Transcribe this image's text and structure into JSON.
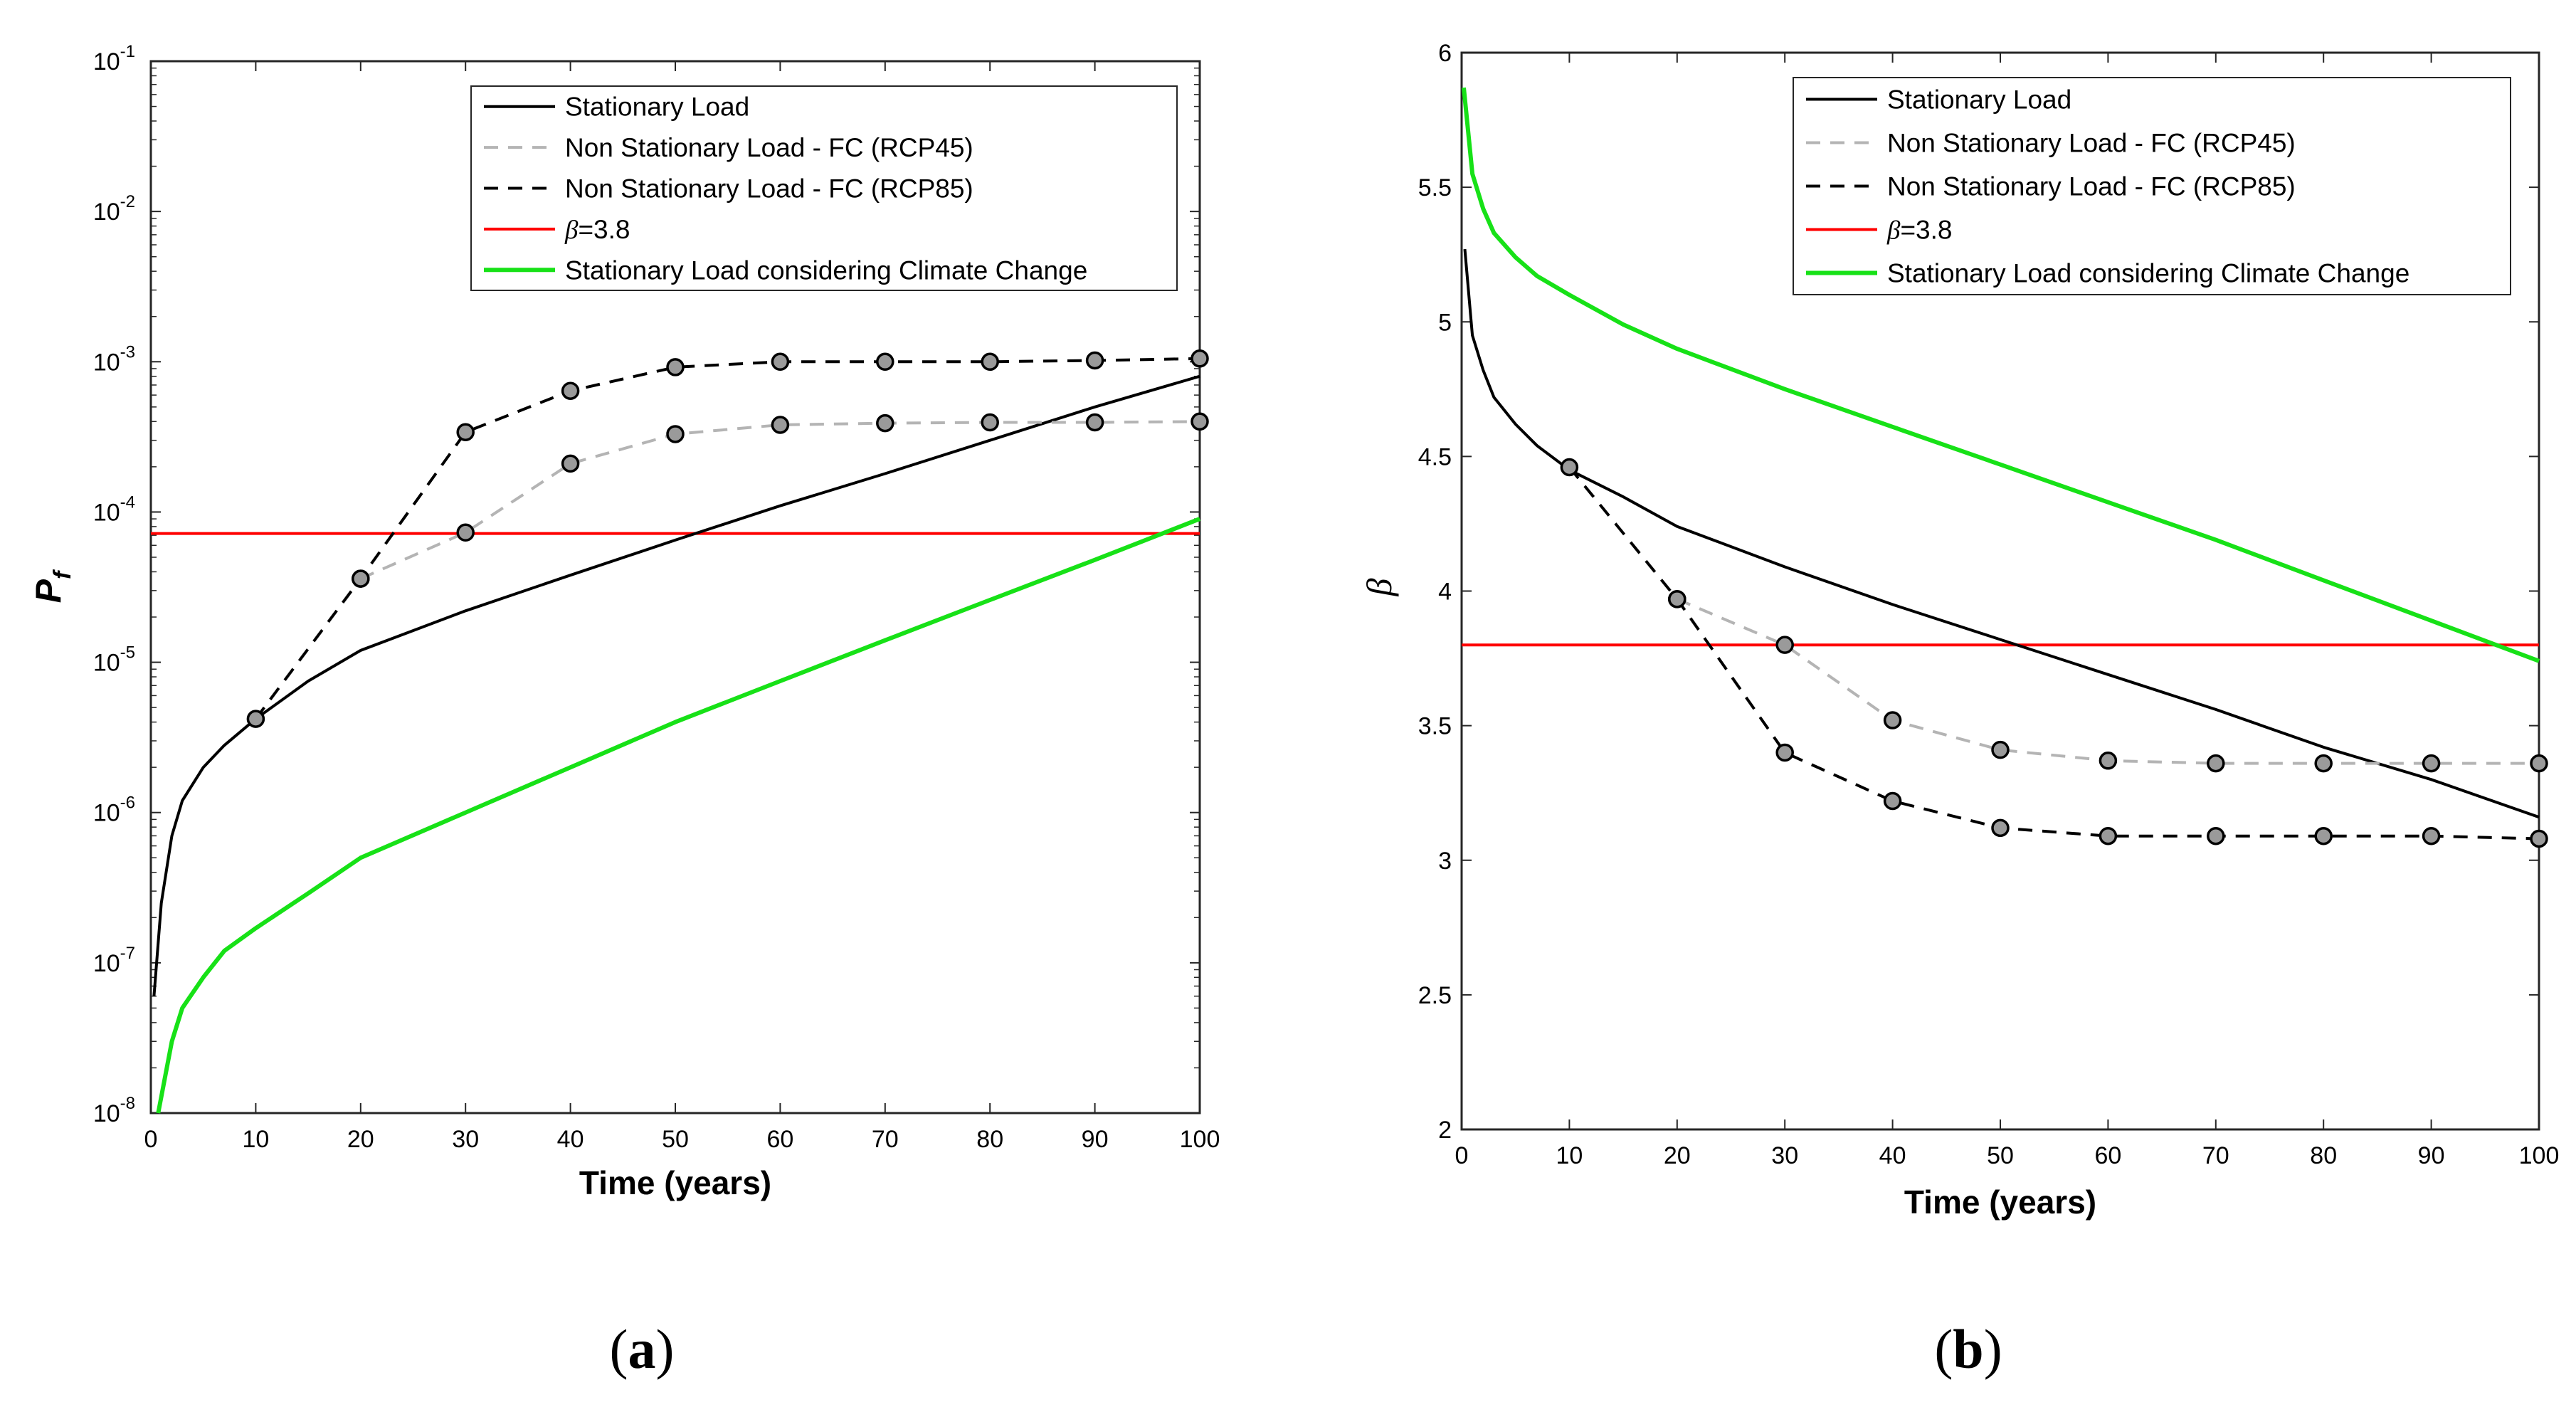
{
  "chart_data": [
    {
      "type": "line",
      "panel_label": "(a)",
      "panel_label_letter": "a",
      "xlabel": "Time (years)",
      "ylabel": "Pf",
      "ylabel_main": "P",
      "ylabel_sub": "f",
      "yscale": "log",
      "xlim": [
        0,
        100
      ],
      "ylim": [
        1e-08,
        0.1
      ],
      "xticks": [
        0,
        10,
        20,
        30,
        40,
        50,
        60,
        70,
        80,
        90,
        100
      ],
      "yticks": [
        {
          "value": 1e-08,
          "exp": "-8"
        },
        {
          "value": 1e-07,
          "exp": "-7"
        },
        {
          "value": 1e-06,
          "exp": "-6"
        },
        {
          "value": 1e-05,
          "exp": "-5"
        },
        {
          "value": 0.0001,
          "exp": "-4"
        },
        {
          "value": 0.001,
          "exp": "-3"
        },
        {
          "value": 0.01,
          "exp": "-2"
        },
        {
          "value": 0.1,
          "exp": "-1"
        }
      ],
      "tick_base": "10",
      "legend_position": "top-right",
      "series": [
        {
          "name": "Stationary Load",
          "color": "#000000",
          "dash": "solid",
          "markers": false,
          "x": [
            0.3,
            1,
            2,
            3,
            5,
            7,
            10,
            15,
            20,
            30,
            40,
            50,
            60,
            70,
            80,
            90,
            100
          ],
          "y": [
            6e-08,
            2.5e-07,
            7e-07,
            1.2e-06,
            2e-06,
            2.8e-06,
            4.2e-06,
            7.5e-06,
            1.2e-05,
            2.2e-05,
            3.8e-05,
            6.5e-05,
            0.00011,
            0.00018,
            0.0003,
            0.0005,
            0.0008
          ]
        },
        {
          "name": "Non Stationary Load - FC (RCP45)",
          "color": "#b4b4b4",
          "dash": "dashed",
          "markers": true,
          "x": [
            20,
            30,
            40,
            50,
            60,
            70,
            80,
            90,
            100
          ],
          "y": [
            3.6e-05,
            7.3e-05,
            0.00021,
            0.00033,
            0.00038,
            0.00039,
            0.000395,
            0.000395,
            0.0004
          ]
        },
        {
          "name": "Non Stationary Load - FC (RCP85)",
          "color": "#000000",
          "dash": "dashed",
          "markers": true,
          "x": [
            10,
            20,
            30,
            40,
            50,
            60,
            70,
            80,
            90,
            100
          ],
          "y": [
            4.2e-06,
            3.6e-05,
            0.00034,
            0.00064,
            0.00092,
            0.001,
            0.001,
            0.001,
            0.00102,
            0.00105
          ]
        },
        {
          "name": "β=3.8",
          "name_prefix": "β",
          "name_suffix": "=3.8",
          "color": "#ff0000",
          "dash": "solid",
          "markers": false,
          "x": [
            0,
            100
          ],
          "y": [
            7.2e-05,
            7.2e-05
          ]
        },
        {
          "name": "Stationary Load considering Climate Change",
          "color": "#17e117",
          "dash": "solid",
          "markers": false,
          "x": [
            0.7,
            2,
            3,
            5,
            7,
            10,
            15,
            20,
            30,
            40,
            50,
            60,
            70,
            80,
            90,
            100
          ],
          "y": [
            1e-08,
            3e-08,
            5e-08,
            8e-08,
            1.2e-07,
            1.7e-07,
            2.9e-07,
            5e-07,
            1e-06,
            2e-06,
            4e-06,
            7.5e-06,
            1.4e-05,
            2.6e-05,
            4.8e-05,
            9e-05
          ]
        }
      ]
    },
    {
      "type": "line",
      "panel_label": "(b)",
      "panel_label_letter": "b",
      "xlabel": "Time (years)",
      "ylabel": "β",
      "yscale": "linear",
      "xlim": [
        0,
        100
      ],
      "ylim": [
        2,
        6
      ],
      "xticks": [
        0,
        10,
        20,
        30,
        40,
        50,
        60,
        70,
        80,
        90,
        100
      ],
      "yticks": [
        2,
        2.5,
        3,
        3.5,
        4,
        4.5,
        5,
        5.5,
        6
      ],
      "legend_position": "top-right",
      "series": [
        {
          "name": "Stationary Load",
          "color": "#000000",
          "dash": "solid",
          "markers": false,
          "x": [
            0.3,
            1,
            2,
            3,
            5,
            7,
            10,
            15,
            20,
            30,
            40,
            50,
            60,
            70,
            80,
            90,
            100
          ],
          "y": [
            5.27,
            4.95,
            4.82,
            4.72,
            4.62,
            4.54,
            4.45,
            4.35,
            4.24,
            4.09,
            3.95,
            3.82,
            3.69,
            3.56,
            3.42,
            3.3,
            3.16
          ]
        },
        {
          "name": "Non Stationary Load - FC (RCP45)",
          "color": "#b4b4b4",
          "dash": "dashed",
          "markers": true,
          "x": [
            20,
            30,
            40,
            50,
            60,
            70,
            80,
            90,
            100
          ],
          "y": [
            3.97,
            3.8,
            3.52,
            3.41,
            3.37,
            3.36,
            3.36,
            3.36,
            3.36
          ]
        },
        {
          "name": "Non Stationary Load - FC (RCP85)",
          "color": "#000000",
          "dash": "dashed",
          "markers": true,
          "x": [
            10,
            20,
            30,
            40,
            50,
            60,
            70,
            80,
            90,
            100
          ],
          "y": [
            4.46,
            3.97,
            3.4,
            3.22,
            3.12,
            3.09,
            3.09,
            3.09,
            3.09,
            3.08
          ]
        },
        {
          "name": "β=3.8",
          "name_prefix": "β",
          "name_suffix": "=3.8",
          "color": "#ff0000",
          "dash": "solid",
          "markers": false,
          "x": [
            0,
            100
          ],
          "y": [
            3.8,
            3.8
          ]
        },
        {
          "name": "Stationary Load considering Climate Change",
          "color": "#17e117",
          "dash": "solid",
          "markers": false,
          "x": [
            0.2,
            1,
            2,
            3,
            5,
            7,
            10,
            15,
            20,
            30,
            40,
            50,
            60,
            70,
            80,
            90,
            100
          ],
          "y": [
            5.87,
            5.55,
            5.42,
            5.33,
            5.24,
            5.17,
            5.1,
            4.99,
            4.9,
            4.75,
            4.61,
            4.47,
            4.33,
            4.19,
            4.04,
            3.89,
            3.74
          ]
        }
      ]
    }
  ]
}
